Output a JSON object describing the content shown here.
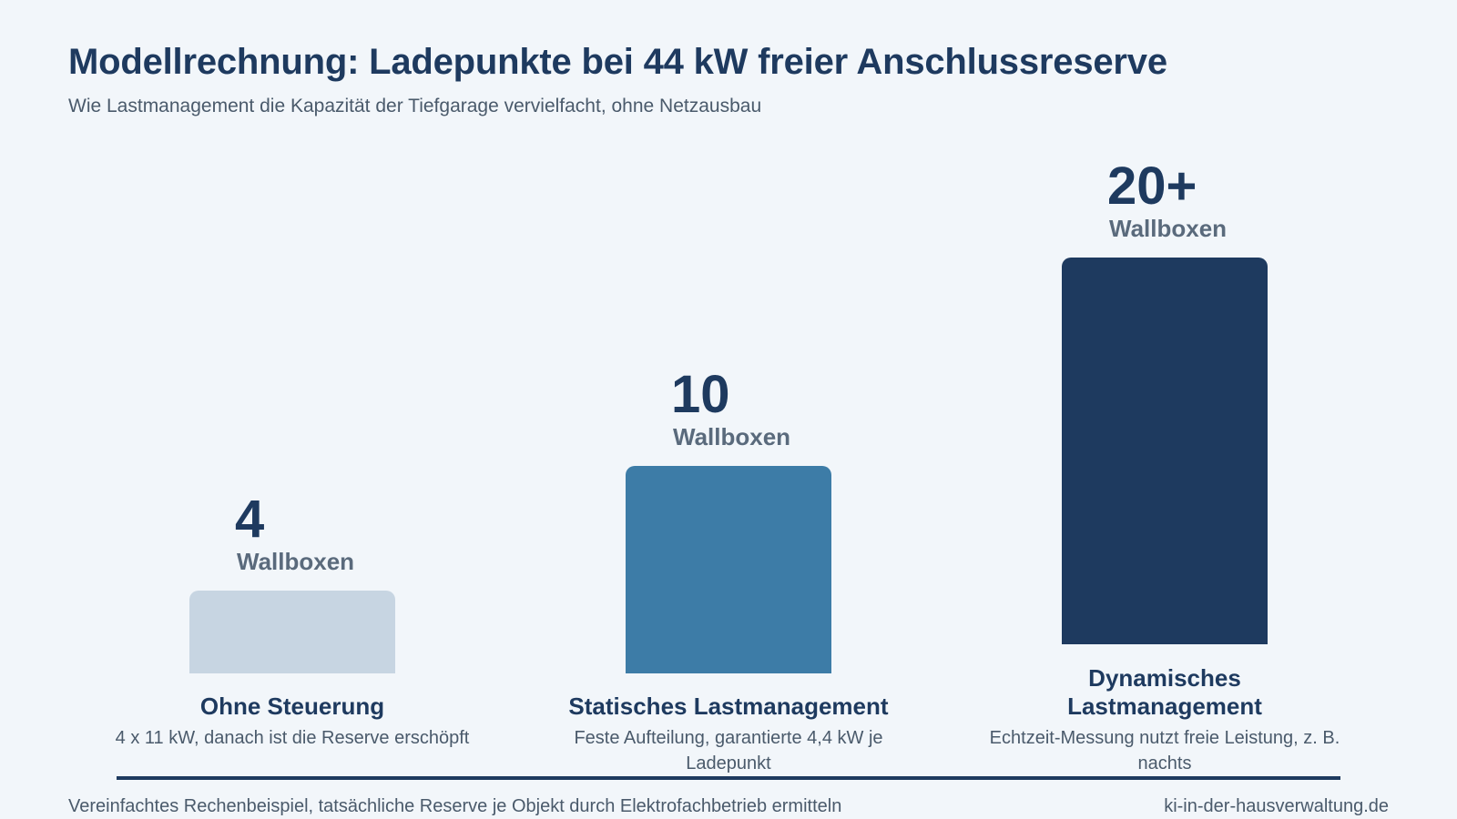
{
  "chart_data": {
    "type": "bar",
    "title": "Modellrechnung: Ladepunkte bei 44 kW freier Anschlussreserve",
    "subtitle": "Wie Lastmanagement die Kapazität der Tiefgarage vervielfacht, ohne Netzausbau",
    "categories": [
      "Ohne Steuerung",
      "Statisches Lastmanagement",
      "Dynamisches Lastmanagement"
    ],
    "descriptions": [
      "4 x 11 kW, danach ist die Reserve erschöpft",
      "Feste Aufteilung, garantierte 4,4 kW je Ladepunkt",
      "Echtzeit-Messung nutzt freie Leistung, z. B. nachts"
    ],
    "values": [
      4,
      10,
      20
    ],
    "value_labels": [
      "4",
      "10",
      "20+"
    ],
    "unit_label": "Wallboxen",
    "colors": [
      "#c7d5e2",
      "#3d7ca7",
      "#1e3a5f"
    ],
    "ylim": [
      0,
      20
    ],
    "grid": false,
    "legend": "none",
    "footnote": "Vereinfachtes Rechenbeispiel, tatsächliche Reserve je Objekt durch Elektrofachbetrieb ermitteln",
    "source": "ki-in-der-hausverwaltung.de"
  }
}
